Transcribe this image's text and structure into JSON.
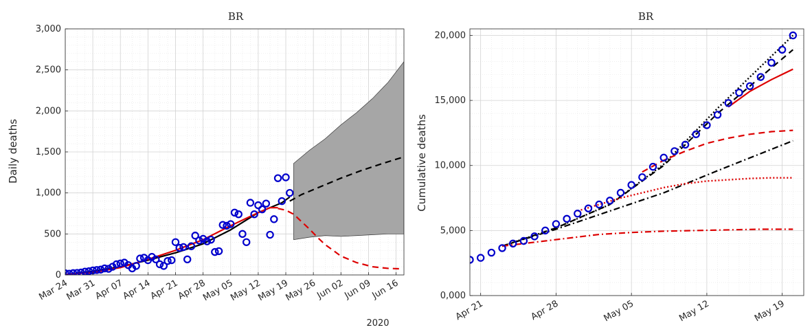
{
  "chart_data": [
    {
      "type": "line",
      "title": "BR",
      "xlabel": "",
      "ylabel": "Daily deaths",
      "year_label": "2020",
      "x_start_date": "2020-03-24",
      "xlim": [
        0,
        86
      ],
      "ylim": [
        0,
        3000
      ],
      "grid": true,
      "x_ticks": [
        {
          "day": 0,
          "label": "Mar 24"
        },
        {
          "day": 7,
          "label": "Mar 31"
        },
        {
          "day": 14,
          "label": "Apr 07"
        },
        {
          "day": 21,
          "label": "Apr 14"
        },
        {
          "day": 28,
          "label": "Apr 21"
        },
        {
          "day": 35,
          "label": "Apr 28"
        },
        {
          "day": 42,
          "label": "May 05"
        },
        {
          "day": 49,
          "label": "May 12"
        },
        {
          "day": 56,
          "label": "May 19"
        },
        {
          "day": 63,
          "label": "May 26"
        },
        {
          "day": 70,
          "label": "Jun 02"
        },
        {
          "day": 77,
          "label": "Jun 09"
        },
        {
          "day": 84,
          "label": "Jun 16"
        }
      ],
      "y_ticks": [
        {
          "value": 0,
          "label": "0"
        },
        {
          "value": 500,
          "label": "500"
        },
        {
          "value": 1000,
          "label": "1,000"
        },
        {
          "value": 1500,
          "label": "1,500"
        },
        {
          "value": 2000,
          "label": "2,000"
        },
        {
          "value": 2500,
          "label": "2,500"
        },
        {
          "value": 3000,
          "label": "3,000"
        }
      ],
      "series": [
        {
          "name": "observed",
          "style": "markers",
          "color": "#0000cc",
          "x": [
            0,
            1,
            2,
            3,
            4,
            5,
            6,
            7,
            8,
            9,
            10,
            11,
            12,
            13,
            14,
            15,
            16,
            17,
            18,
            19,
            20,
            21,
            22,
            23,
            24,
            25,
            26,
            27,
            28,
            29,
            30,
            31,
            32,
            33,
            34,
            35,
            36,
            37,
            38,
            39,
            40,
            41,
            42,
            43,
            44,
            45,
            46,
            47,
            48,
            49,
            50,
            51,
            52,
            53,
            54,
            55,
            56,
            57
          ],
          "y": [
            20,
            15,
            22,
            25,
            30,
            40,
            45,
            55,
            60,
            65,
            80,
            75,
            100,
            130,
            140,
            150,
            120,
            80,
            110,
            200,
            210,
            180,
            220,
            190,
            130,
            110,
            170,
            180,
            400,
            330,
            340,
            190,
            350,
            480,
            420,
            440,
            410,
            430,
            280,
            290,
            610,
            600,
            620,
            760,
            740,
            500,
            400,
            880,
            740,
            850,
            800,
            870,
            490,
            680,
            1180,
            900,
            1190,
            1000
          ]
        },
        {
          "name": "smoothed",
          "style": "solid",
          "color": "#000000",
          "x": [
            0,
            7,
            14,
            21,
            28,
            35,
            42,
            49,
            52,
            55,
            57
          ],
          "y": [
            5,
            45,
            100,
            180,
            270,
            380,
            550,
            760,
            820,
            880,
            950
          ]
        },
        {
          "name": "fit",
          "style": "solid",
          "color": "#dd0000",
          "x": [
            0,
            7,
            14,
            21,
            28,
            35,
            42,
            49,
            52,
            54
          ],
          "y": [
            5,
            30,
            90,
            190,
            300,
            430,
            600,
            760,
            820,
            820
          ]
        },
        {
          "name": "fit-projection",
          "style": "dashed",
          "color": "#dd0000",
          "x": [
            54,
            56,
            58,
            60,
            62,
            64,
            66,
            70,
            74,
            78,
            82,
            85
          ],
          "y": [
            810,
            790,
            740,
            650,
            560,
            460,
            370,
            230,
            150,
            100,
            80,
            75
          ]
        },
        {
          "name": "projection",
          "style": "dashed",
          "color": "#000000",
          "x": [
            57,
            60,
            65,
            70,
            75,
            80,
            86
          ],
          "y": [
            900,
            980,
            1080,
            1180,
            1270,
            1350,
            1440
          ]
        }
      ],
      "band": {
        "color": "#a6a6a6",
        "x": [
          58,
          62,
          66,
          70,
          74,
          78,
          82,
          86
        ],
        "upper": [
          1360,
          1520,
          1660,
          1830,
          1980,
          2150,
          2350,
          2600
        ],
        "lower": [
          430,
          460,
          480,
          470,
          480,
          490,
          500,
          500
        ]
      }
    },
    {
      "type": "line",
      "title": "BR",
      "xlabel": "",
      "ylabel": "Cumulative deaths",
      "x_start_date": "2020-04-20",
      "xlim": [
        0,
        31
      ],
      "ylim": [
        0,
        20500
      ],
      "grid": true,
      "x_ticks": [
        {
          "day": 1,
          "label": "Apr 21"
        },
        {
          "day": 8,
          "label": "Apr 28"
        },
        {
          "day": 15,
          "label": "May 05"
        },
        {
          "day": 22,
          "label": "May 12"
        },
        {
          "day": 29,
          "label": "May 19"
        }
      ],
      "y_ticks": [
        {
          "value": 0,
          "label": "0,000"
        },
        {
          "value": 5000,
          "label": "5,000"
        },
        {
          "value": 10000,
          "label": "10,000"
        },
        {
          "value": 15000,
          "label": "15,000"
        },
        {
          "value": 20000,
          "label": "20,000"
        }
      ],
      "series": [
        {
          "name": "observed",
          "style": "markers",
          "color": "#0000cc",
          "x": [
            0,
            1,
            2,
            3,
            4,
            5,
            6,
            7,
            8,
            9,
            10,
            11,
            12,
            13,
            14,
            15,
            16,
            17,
            18,
            19,
            20,
            21,
            22,
            23,
            24,
            25,
            26,
            27,
            28,
            29,
            30
          ],
          "y": [
            2750,
            2900,
            3300,
            3650,
            4000,
            4200,
            4550,
            5000,
            5500,
            5900,
            6300,
            6700,
            7000,
            7300,
            7900,
            8500,
            9100,
            9900,
            10600,
            11100,
            11600,
            12400,
            13100,
            13900,
            14800,
            15600,
            16100,
            16800,
            17900,
            18900,
            20000
          ]
        },
        {
          "name": "fit-dotted-black",
          "style": "dotted",
          "color": "#000000",
          "x": [
            3,
            8,
            13,
            18,
            23,
            30
          ],
          "y": [
            3800,
            5200,
            7000,
            10100,
            14400,
            20000
          ]
        },
        {
          "name": "fit-dashed-black",
          "style": "dashed",
          "color": "#000000",
          "x": [
            3,
            8,
            13,
            18,
            23,
            30
          ],
          "y": [
            3800,
            5200,
            7000,
            10000,
            14000,
            18900
          ]
        },
        {
          "name": "fit-solid-red",
          "style": "solid",
          "color": "#dd0000",
          "x": [
            24,
            26,
            28,
            30
          ],
          "y": [
            14500,
            15700,
            16600,
            17400
          ]
        },
        {
          "name": "fit-dashed-red",
          "style": "dashed",
          "color": "#dd0000",
          "x": [
            16,
            18,
            20,
            22,
            24,
            26,
            28,
            30
          ],
          "y": [
            9500,
            10400,
            11100,
            11700,
            12100,
            12400,
            12600,
            12700
          ]
        },
        {
          "name": "fit-dashdot-black",
          "style": "dashdot",
          "color": "#000000",
          "x": [
            3,
            8,
            13,
            18,
            23,
            30
          ],
          "y": [
            3800,
            5100,
            6500,
            7900,
            9600,
            11900
          ]
        },
        {
          "name": "fit-dotted-red",
          "style": "dotted",
          "color": "#dd0000",
          "x": [
            10,
            12,
            14,
            16,
            18,
            20,
            22,
            24,
            26,
            28,
            30
          ],
          "y": [
            6500,
            7000,
            7500,
            7900,
            8300,
            8600,
            8800,
            8900,
            9000,
            9050,
            9050
          ]
        },
        {
          "name": "fit-dashdot-red",
          "style": "dashdot",
          "color": "#dd0000",
          "x": [
            3,
            6,
            9,
            12,
            15,
            18,
            21,
            24,
            27,
            30
          ],
          "y": [
            3800,
            4100,
            4400,
            4700,
            4850,
            4950,
            5000,
            5050,
            5100,
            5100
          ]
        }
      ]
    }
  ]
}
